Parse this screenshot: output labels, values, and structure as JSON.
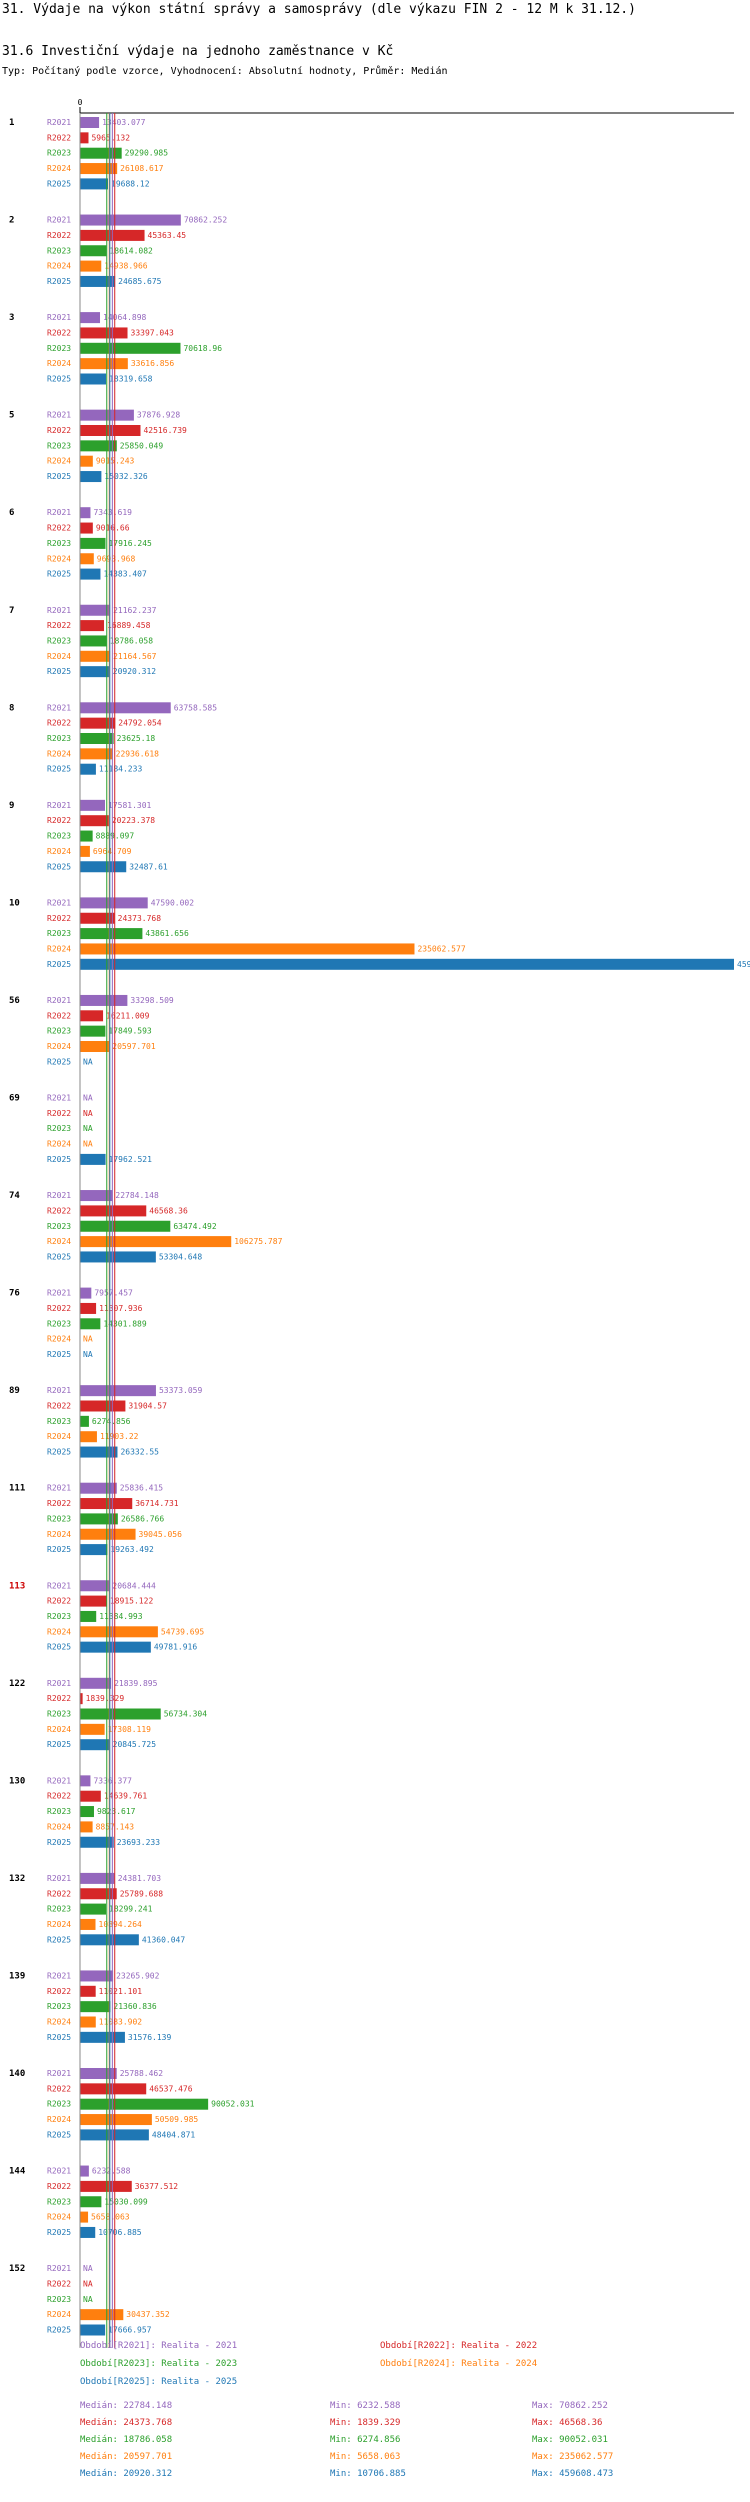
{
  "page": {
    "title": "31. Výdaje na výkon státní správy a samosprávy (dle výkazu FIN 2 - 12 M k 31.12.)",
    "subtitle": "31.6 Investiční výdaje na jednoho zaměstnance v Kč",
    "info": "Typ: Počítaný podle vzorce, Vyhodnocení: Absolutní hodnoty, Průměr: Medián"
  },
  "colors": {
    "R2021": "#9467bd",
    "R2022": "#d62728",
    "R2023": "#2ca02c",
    "R2024": "#ff7f0e",
    "R2025": "#1f77b4",
    "highlight": "#cc0000",
    "axis": "#000000"
  },
  "chart_data": {
    "type": "bar",
    "orientation": "horizontal",
    "x_tick_label": "0",
    "xlim": [
      0,
      459608.473
    ],
    "series_labels": [
      "R2021",
      "R2022",
      "R2023",
      "R2024",
      "R2025"
    ],
    "na_label": "NA",
    "highlighted_group": "113",
    "groups": [
      {
        "id": "1",
        "values": [
          13403.077,
          5965.132,
          29290.985,
          26108.617,
          19688.12
        ]
      },
      {
        "id": "2",
        "values": [
          70862.252,
          45363.45,
          18614.082,
          14938.966,
          24685.675
        ]
      },
      {
        "id": "3",
        "values": [
          14064.898,
          33397.043,
          70618.96,
          33616.856,
          18319.658
        ]
      },
      {
        "id": "5",
        "values": [
          37876.928,
          42516.739,
          25850.049,
          9015.243,
          15032.326
        ]
      },
      {
        "id": "6",
        "values": [
          7343.619,
          9016.66,
          17916.245,
          9693.968,
          14383.407
        ]
      },
      {
        "id": "7",
        "values": [
          21162.237,
          16889.458,
          18786.058,
          21164.567,
          20920.312
        ]
      },
      {
        "id": "8",
        "values": [
          63758.585,
          24792.054,
          23625.18,
          22936.618,
          11184.233
        ]
      },
      {
        "id": "9",
        "values": [
          17581.301,
          20223.378,
          8889.097,
          6964.709,
          32487.61
        ]
      },
      {
        "id": "10",
        "values": [
          47590.002,
          24373.768,
          43861.656,
          235062.577,
          459608.473
        ]
      },
      {
        "id": "56",
        "values": [
          33298.509,
          16211.009,
          17849.593,
          20597.701,
          null
        ]
      },
      {
        "id": "69",
        "values": [
          null,
          null,
          null,
          null,
          17962.521
        ]
      },
      {
        "id": "74",
        "values": [
          22784.148,
          46568.36,
          63474.492,
          106275.787,
          53304.648
        ]
      },
      {
        "id": "76",
        "values": [
          7957.457,
          11307.936,
          14301.889,
          null,
          null
        ]
      },
      {
        "id": "89",
        "values": [
          53373.059,
          31904.57,
          6274.856,
          11903.22,
          26332.55
        ]
      },
      {
        "id": "111",
        "values": [
          25836.415,
          36714.731,
          26586.766,
          39045.056,
          19263.492
        ]
      },
      {
        "id": "113",
        "values": [
          20684.444,
          18915.122,
          11384.993,
          54739.695,
          49781.916
        ]
      },
      {
        "id": "122",
        "values": [
          21839.895,
          1839.329,
          56734.304,
          17308.119,
          20845.725
        ]
      },
      {
        "id": "130",
        "values": [
          7336.377,
          14639.761,
          9823.617,
          8857.143,
          23693.233
        ]
      },
      {
        "id": "132",
        "values": [
          24381.703,
          25789.688,
          18299.241,
          10894.264,
          41360.047
        ]
      },
      {
        "id": "139",
        "values": [
          23265.902,
          11021.101,
          21360.836,
          11083.902,
          31576.139
        ]
      },
      {
        "id": "140",
        "values": [
          25788.462,
          46537.476,
          90052.031,
          50509.985,
          48404.871
        ]
      },
      {
        "id": "144",
        "values": [
          6232.588,
          36377.512,
          15030.099,
          5658.063,
          10706.885
        ]
      },
      {
        "id": "152",
        "values": [
          null,
          null,
          null,
          30437.352,
          17666.957
        ]
      }
    ],
    "legend": [
      {
        "label": "Období[R2021]: Realita - 2021",
        "series": "R2021"
      },
      {
        "label": "Období[R2022]: Realita - 2022",
        "series": "R2022"
      },
      {
        "label": "Období[R2023]: Realita - 2023",
        "series": "R2023"
      },
      {
        "label": "Období[R2024]: Realita - 2024",
        "series": "R2024"
      },
      {
        "label": "Období[R2025]: Realita - 2025",
        "series": "R2025"
      }
    ],
    "stats": [
      {
        "series": "R2021",
        "median": "Medián: 22784.148",
        "min": "Min: 6232.588",
        "max": "Max: 70862.252"
      },
      {
        "series": "R2022",
        "median": "Medián: 24373.768",
        "min": "Min: 1839.329",
        "max": "Max: 46568.36"
      },
      {
        "series": "R2023",
        "median": "Medián: 18786.058",
        "min": "Min: 6274.856",
        "max": "Max: 90052.031"
      },
      {
        "series": "R2024",
        "median": "Medián: 20597.701",
        "min": "Min: 5658.063",
        "max": "Max: 235062.577"
      },
      {
        "series": "R2025",
        "median": "Medián: 20920.312",
        "min": "Min: 10706.885",
        "max": "Max: 459608.473"
      }
    ],
    "medians": [
      22784.148,
      24373.768,
      18786.058,
      20597.701,
      20920.312
    ]
  }
}
